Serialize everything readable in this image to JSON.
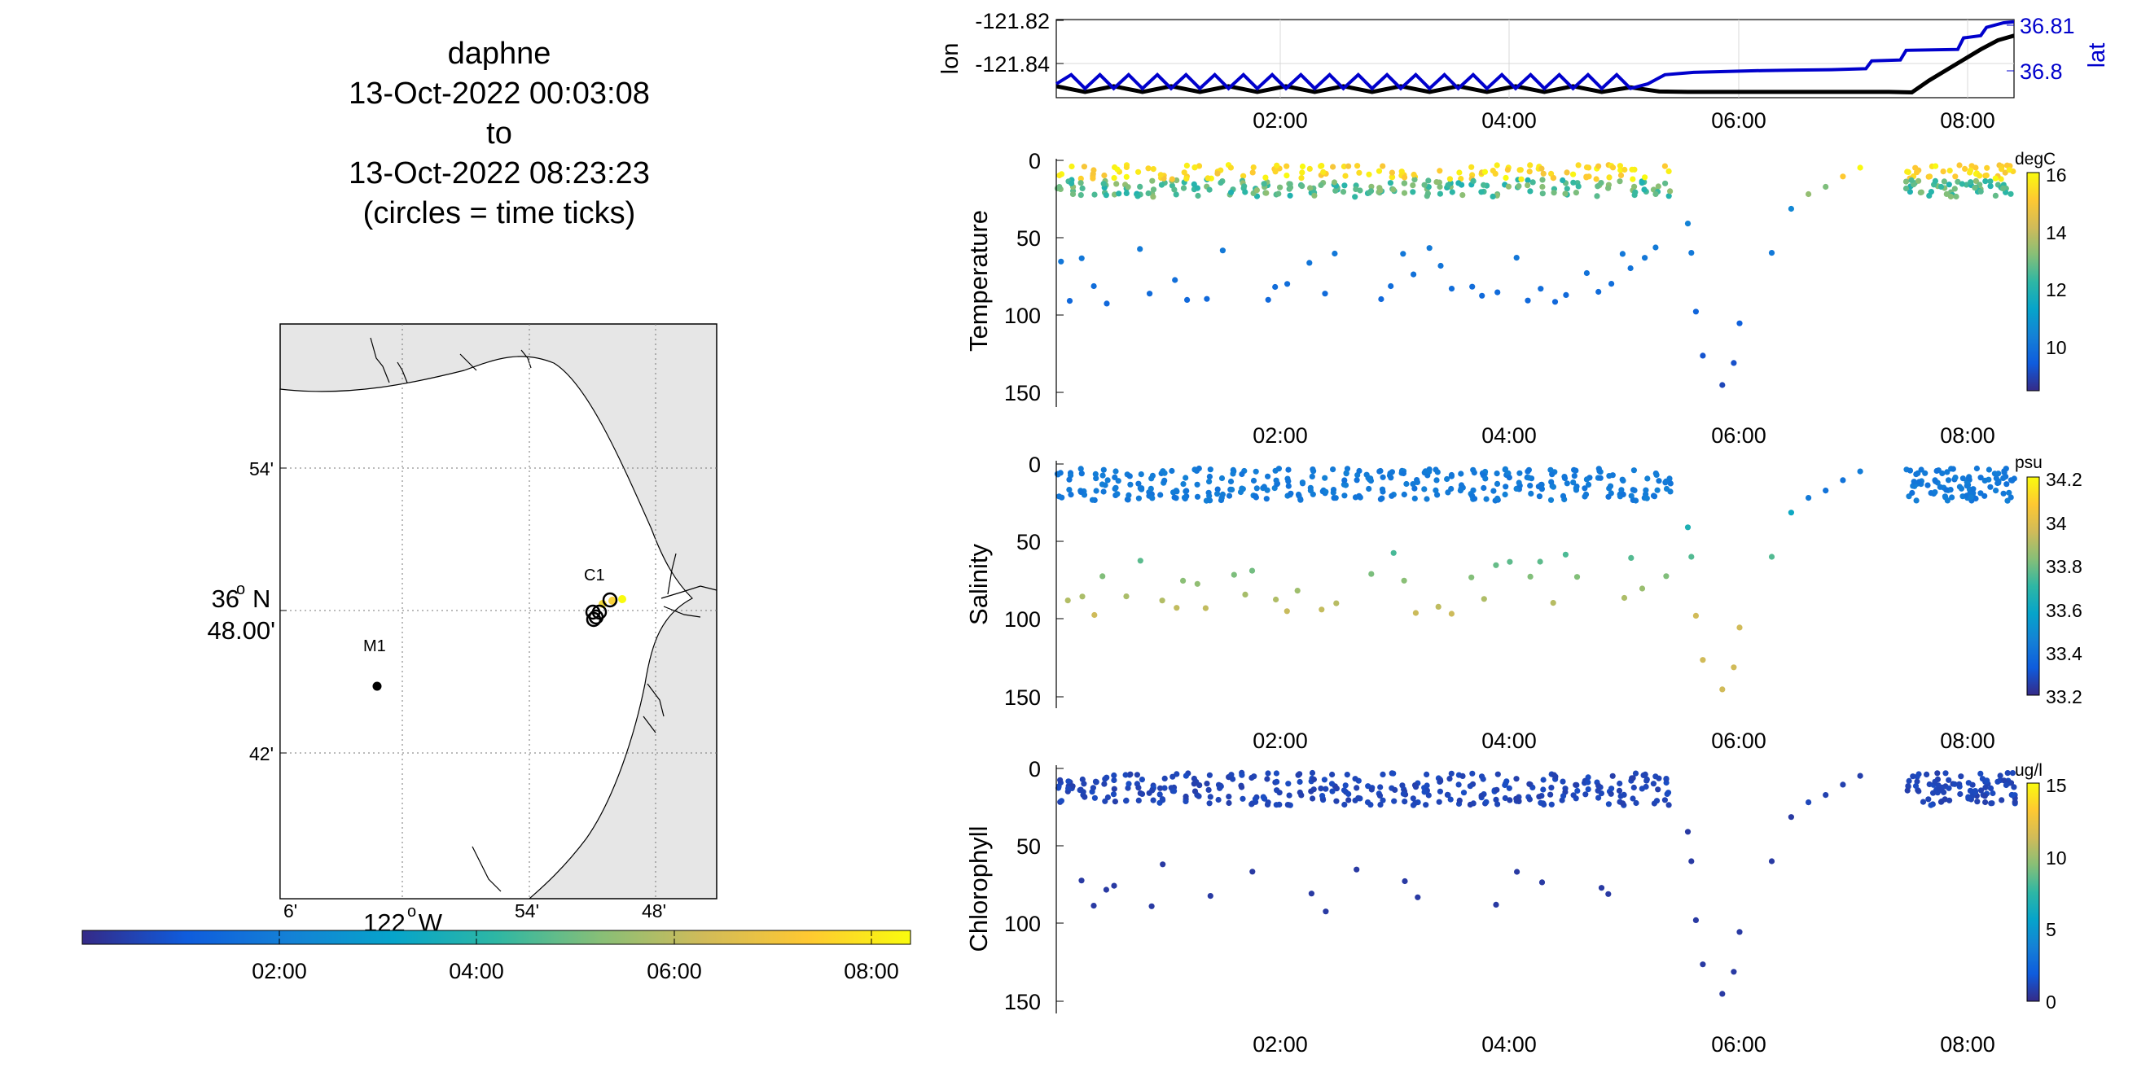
{
  "title": {
    "line1": "daphne",
    "line2": "13-Oct-2022 00:03:08",
    "line3": "to",
    "line4": "13-Oct-2022 08:23:23",
    "line5": "(circles = time ticks)"
  },
  "map": {
    "lat_ticks": [
      "54'",
      "48.00'",
      "42'"
    ],
    "lat_main": "36",
    "lat_main_unit": "N",
    "lon_ticks": [
      "6'",
      "54'",
      "48'"
    ],
    "lon_main": "122",
    "lon_main_unit": "W",
    "stations": [
      {
        "label": "C1"
      },
      {
        "label": "M1"
      }
    ],
    "time_colorbar_ticks": [
      "02:00",
      "04:00",
      "06:00",
      "08:00"
    ]
  },
  "time_ticks": [
    "02:00",
    "04:00",
    "06:00",
    "08:00"
  ],
  "colors": {
    "lon_line": "#000000",
    "lat_line": "#0000cc",
    "parula": [
      "#352a87",
      "#0f5cdd",
      "#1481d6",
      "#06a4ca",
      "#2eb7a4",
      "#87bf77",
      "#d1bb59",
      "#fec832",
      "#f9fb0e"
    ]
  },
  "chart_data": [
    {
      "type": "line",
      "title": "",
      "xlabel": "",
      "x_range_hours": [
        0.05,
        8.39
      ],
      "ylabel": "lon",
      "ylabel_right": "lat",
      "y_ticks": [
        "-121.82",
        "-121.84"
      ],
      "y2_ticks": [
        "36.81",
        "36.8"
      ],
      "ylim": [
        -121.8515,
        -121.8175
      ],
      "y2lim": [
        36.7955,
        36.8125
      ],
      "series": [
        {
          "name": "lon",
          "x": [
            0.05,
            0.3,
            0.55,
            0.8,
            1.05,
            1.3,
            1.55,
            1.8,
            2.05,
            2.3,
            2.55,
            2.8,
            3.05,
            3.3,
            3.55,
            3.8,
            4.05,
            4.3,
            4.55,
            4.8,
            5.05,
            5.3,
            5.55,
            5.8,
            6.05,
            6.3,
            6.55,
            6.8,
            7.05,
            7.3,
            7.5,
            7.65,
            7.8,
            7.95,
            8.1,
            8.25,
            8.39
          ],
          "y": [
            -121.8465,
            -121.849,
            -121.8465,
            -121.849,
            -121.8465,
            -121.849,
            -121.8465,
            -121.849,
            -121.8465,
            -121.849,
            -121.8465,
            -121.849,
            -121.8465,
            -121.849,
            -121.8465,
            -121.849,
            -121.8465,
            -121.849,
            -121.8465,
            -121.849,
            -121.847,
            -121.8488,
            -121.849,
            -121.849,
            -121.849,
            -121.849,
            -121.849,
            -121.849,
            -121.849,
            -121.849,
            -121.8492,
            -121.844,
            -121.8395,
            -121.835,
            -121.8305,
            -121.8265,
            -121.8245
          ]
        },
        {
          "name": "lat",
          "x": [
            0.05,
            0.18,
            0.3,
            0.43,
            0.55,
            0.68,
            0.8,
            0.93,
            1.05,
            1.18,
            1.3,
            1.43,
            1.55,
            1.68,
            1.8,
            1.93,
            2.05,
            2.18,
            2.3,
            2.43,
            2.55,
            2.68,
            2.8,
            2.93,
            3.05,
            3.18,
            3.3,
            3.43,
            3.55,
            3.68,
            3.8,
            3.93,
            4.05,
            4.18,
            4.3,
            4.43,
            4.55,
            4.68,
            4.8,
            4.93,
            5.05,
            5.2,
            5.35,
            5.6,
            5.9,
            6.2,
            6.5,
            6.8,
            7.1,
            7.15,
            7.4,
            7.45,
            7.9,
            7.95,
            8.1,
            8.15,
            8.3,
            8.39
          ],
          "y": [
            36.7985,
            36.8005,
            36.7975,
            36.8005,
            36.7975,
            36.8005,
            36.7975,
            36.8005,
            36.7975,
            36.8005,
            36.7975,
            36.8005,
            36.7975,
            36.8005,
            36.7975,
            36.8005,
            36.7975,
            36.8005,
            36.7975,
            36.8005,
            36.7975,
            36.8005,
            36.7975,
            36.8005,
            36.7975,
            36.8005,
            36.7975,
            36.8005,
            36.7975,
            36.8005,
            36.7975,
            36.8005,
            36.7975,
            36.8005,
            36.7975,
            36.8005,
            36.7975,
            36.8005,
            36.7975,
            36.8005,
            36.7975,
            36.7985,
            36.8005,
            36.801,
            36.8012,
            36.8014,
            36.8015,
            36.8016,
            36.8018,
            36.8035,
            36.8037,
            36.8058,
            36.806,
            36.8085,
            36.809,
            36.8108,
            36.8118,
            36.812
          ]
        }
      ]
    },
    {
      "type": "scatter",
      "title": "",
      "xlabel": "",
      "ylabel": "Temperature",
      "y_ticks": [
        "0",
        "50",
        "100",
        "150"
      ],
      "ylim": [
        155,
        -3
      ],
      "y_reversed": true,
      "colorbar": {
        "label": "degC",
        "ticks": [
          "16",
          "14",
          "12",
          "10"
        ],
        "range": [
          8.5,
          16.3
        ]
      }
    },
    {
      "type": "scatter",
      "title": "",
      "xlabel": "",
      "ylabel": "Salinity",
      "y_ticks": [
        "0",
        "50",
        "100",
        "150"
      ],
      "ylim": [
        155,
        -3
      ],
      "y_reversed": true,
      "colorbar": {
        "label": "psu",
        "ticks": [
          "34.2",
          "34",
          "33.8",
          "33.6",
          "33.4",
          "33.2"
        ],
        "range": [
          33.15,
          34.25
        ]
      }
    },
    {
      "type": "scatter",
      "title": "",
      "xlabel": "",
      "ylabel": "Chlorophyll",
      "y_ticks": [
        "0",
        "50",
        "100",
        "150"
      ],
      "ylim": [
        155,
        -3
      ],
      "y_reversed": true,
      "colorbar": {
        "label": "ug/l",
        "ticks": [
          "15",
          "10",
          "5",
          "0"
        ],
        "range": [
          0,
          15
        ]
      }
    }
  ]
}
